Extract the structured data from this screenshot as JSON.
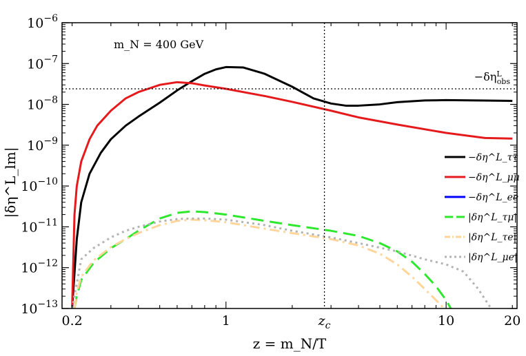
{
  "chart_data": {
    "type": "line",
    "x_scale": "log",
    "y_scale": "log",
    "xlim": [
      0.18,
      21
    ],
    "ylim": [
      1e-13,
      1e-06
    ],
    "xlabel": "z = m_N/T",
    "ylabel": "|δη^L_lm|",
    "x_ticks": [
      {
        "value": 0.2,
        "label": "0.2"
      },
      {
        "value": 1,
        "label": "1"
      },
      {
        "value": 2.8,
        "label": "z_c"
      },
      {
        "value": 10,
        "label": "10"
      },
      {
        "value": 20,
        "label": "20"
      }
    ],
    "y_ticks": [
      {
        "value": 1e-06,
        "base": "10",
        "exp": "−6"
      },
      {
        "value": 1e-07,
        "base": "10",
        "exp": "−7"
      },
      {
        "value": 1e-08,
        "base": "10",
        "exp": "−8"
      },
      {
        "value": 1e-09,
        "base": "10",
        "exp": "−9"
      },
      {
        "value": 1e-10,
        "base": "10",
        "exp": "−10"
      },
      {
        "value": 1e-11,
        "base": "10",
        "exp": "−11"
      },
      {
        "value": 1e-12,
        "base": "10",
        "exp": "−12"
      },
      {
        "value": 1e-13,
        "base": "10",
        "exp": "−13"
      }
    ],
    "annotation": "m_N = 400 GeV",
    "reference_lines": [
      {
        "orientation": "horizontal",
        "value": 2.4e-08,
        "label": "−δη^L_obs",
        "style": "dotted",
        "color": "#000000"
      },
      {
        "orientation": "vertical",
        "value": 2.8,
        "label": "z_c",
        "style": "dotted",
        "color": "#000000"
      }
    ],
    "legend_position": "right",
    "series": [
      {
        "name": "−δη^L_ττ",
        "color": "#000000",
        "dash": "solid",
        "x": [
          0.2,
          0.21,
          0.22,
          0.24,
          0.27,
          0.3,
          0.35,
          0.4,
          0.5,
          0.6,
          0.7,
          0.8,
          0.9,
          1.0,
          1.2,
          1.5,
          2.0,
          2.5,
          3.0,
          3.5,
          4.0,
          5.0,
          6.0,
          8.0,
          10.0,
          15.0,
          20.0
        ],
        "y": [
          1e-13,
          5e-12,
          4e-11,
          2e-10,
          6.5e-10,
          1.4e-09,
          3e-09,
          5e-09,
          1.1e-08,
          2.2e-08,
          3.7e-08,
          5.6e-08,
          7.2e-08,
          8.2e-08,
          8e-08,
          5.6e-08,
          2.7e-08,
          1.4e-08,
          1.05e-08,
          9.3e-09,
          9.3e-09,
          1e-08,
          1.13e-08,
          1.25e-08,
          1.27e-08,
          1.24e-08,
          1.22e-08
        ]
      },
      {
        "name": "−δη^L_μμ",
        "color": "#e41a1c",
        "dash": "solid",
        "x": [
          0.2,
          0.205,
          0.21,
          0.22,
          0.24,
          0.26,
          0.3,
          0.35,
          0.4,
          0.5,
          0.6,
          0.7,
          0.8,
          1.0,
          1.5,
          2.0,
          3.0,
          4.0,
          6.0,
          10.0,
          15.0,
          20.0
        ],
        "y": [
          1e-13,
          2e-11,
          1e-10,
          4e-10,
          1.4e-09,
          3e-09,
          7e-09,
          1.4e-08,
          2e-08,
          3e-08,
          3.5e-08,
          3.3e-08,
          2.9e-08,
          2.4e-08,
          1.6e-08,
          1.15e-08,
          7e-09,
          4.8e-09,
          3.2e-09,
          2e-09,
          1.5e-09,
          1.45e-09
        ]
      },
      {
        "name": "−δη^L_ee",
        "color": "#0000ff",
        "dash": "solid",
        "x": [],
        "y": []
      },
      {
        "name": "|δη^L_τμ|",
        "color": "#2ee82e",
        "dash": "long-dash",
        "x": [
          0.205,
          0.21,
          0.22,
          0.25,
          0.3,
          0.35,
          0.4,
          0.5,
          0.6,
          0.7,
          0.8,
          1.0,
          1.5,
          2.0,
          3.0,
          4.0,
          5.0,
          6.0,
          7.0,
          8.0,
          9.0,
          10.0,
          10.5
        ],
        "y": [
          1e-13,
          2e-13,
          5e-13,
          1.3e-12,
          3e-12,
          5e-12,
          8e-12,
          1.6e-11,
          2.2e-11,
          2.4e-11,
          2.3e-11,
          2e-11,
          1.4e-11,
          1.1e-11,
          8e-12,
          6e-12,
          4e-12,
          2.5e-12,
          1.4e-12,
          7e-13,
          3.5e-13,
          1.6e-13,
          1e-13
        ]
      },
      {
        "name": "|δη^L_τe|",
        "color": "#ffd59a",
        "dash": "dash-dot",
        "x": [
          0.205,
          0.21,
          0.22,
          0.25,
          0.3,
          0.35,
          0.4,
          0.5,
          0.6,
          0.7,
          0.8,
          1.0,
          1.5,
          2.0,
          3.0,
          4.0,
          5.0,
          6.0,
          7.0,
          8.0,
          9.0,
          9.8
        ],
        "y": [
          1e-13,
          2.5e-13,
          6e-13,
          1.5e-12,
          3.2e-12,
          5e-12,
          7e-12,
          1.1e-11,
          1.4e-11,
          1.5e-11,
          1.45e-11,
          1.3e-11,
          9e-12,
          7e-12,
          5e-12,
          3.5e-12,
          2.2e-12,
          1.2e-12,
          6e-13,
          3e-13,
          1.6e-13,
          1e-13
        ]
      },
      {
        "name": "|δη^L_μe|",
        "color": "#b3b3b3",
        "dash": "dotted",
        "x": [
          0.2,
          0.22,
          0.25,
          0.3,
          0.35,
          0.4,
          0.5,
          0.6,
          0.7,
          0.8,
          1.0,
          1.5,
          2.0,
          3.0,
          4.0,
          6.0,
          8.0,
          10.0,
          12.0,
          14.0,
          16.0
        ],
        "y": [
          1e-13,
          1.6e-12,
          3e-12,
          5.5e-12,
          8e-12,
          1e-11,
          1.35e-11,
          1.55e-11,
          1.6e-11,
          1.6e-11,
          1.5e-11,
          1.1e-11,
          8e-12,
          5.5e-12,
          4e-12,
          2.5e-12,
          1.6e-12,
          1.2e-12,
          8e-13,
          3e-13,
          1e-13
        ]
      }
    ]
  }
}
